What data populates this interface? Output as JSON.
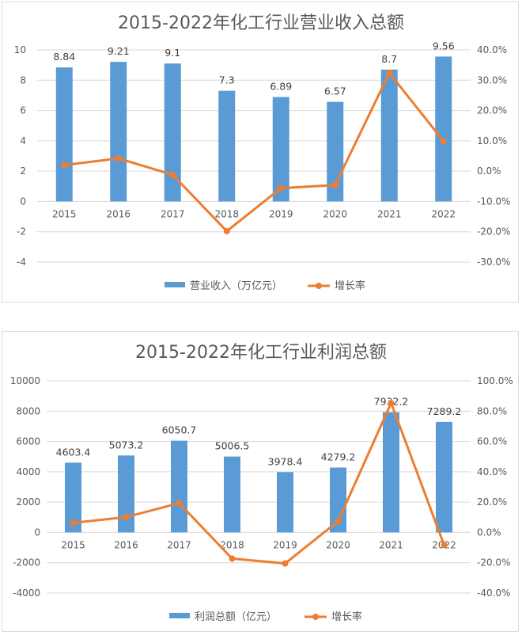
{
  "chart_data": [
    {
      "type": "bar",
      "title": "2015-2022年化工行业营业收入总额",
      "categories": [
        "2015",
        "2016",
        "2017",
        "2018",
        "2019",
        "2020",
        "2021",
        "2022"
      ],
      "series": [
        {
          "name": "营业收入（万亿元）",
          "type": "bar",
          "axis": "left",
          "color": "#5b9bd5",
          "values": [
            8.84,
            9.21,
            9.1,
            7.3,
            6.89,
            6.57,
            8.7,
            9.56
          ],
          "labels": [
            "8.84",
            "9.21",
            "9.1",
            "7.3",
            "6.89",
            "6.57",
            "8.7",
            "9.56"
          ]
        },
        {
          "name": "增长率",
          "type": "line",
          "axis": "right",
          "color": "#ed7d31",
          "values": [
            2.0,
            4.2,
            -1.2,
            -19.8,
            -5.6,
            -4.6,
            32.4,
            9.9
          ]
        }
      ],
      "left_axis": {
        "ylim": [
          -4,
          10
        ],
        "ticks": [
          "-4",
          "-2",
          "0",
          "2",
          "4",
          "6",
          "8",
          "10"
        ]
      },
      "right_axis": {
        "ylim": [
          -30,
          40
        ],
        "ticks": [
          "-30.0%",
          "-20.0%",
          "-10.0%",
          "0.0%",
          "10.0%",
          "20.0%",
          "30.0%",
          "40.0%"
        ]
      },
      "legend_position": "bottom"
    },
    {
      "type": "bar",
      "title": "2015-2022年化工行业利润总额",
      "categories": [
        "2015",
        "2016",
        "2017",
        "2018",
        "2019",
        "2020",
        "2021",
        "2022"
      ],
      "series": [
        {
          "name": "利润总额（亿元）",
          "type": "bar",
          "axis": "left",
          "color": "#5b9bd5",
          "values": [
            4603.4,
            5073.2,
            6050.7,
            5006.5,
            3978.4,
            4279.2,
            7932.2,
            7289.2
          ],
          "labels": [
            "4603.4",
            "5073.2",
            "6050.7",
            "5006.5",
            "3978.4",
            "4279.2",
            "7932.2",
            "7289.2"
          ]
        },
        {
          "name": "增长率",
          "type": "line",
          "axis": "right",
          "color": "#ed7d31",
          "values": [
            6.3,
            10.1,
            19.3,
            -17.3,
            -20.5,
            7.4,
            85.4,
            -8.3
          ]
        }
      ],
      "left_axis": {
        "ylim": [
          -4000,
          10000
        ],
        "ticks": [
          "-4000",
          "-2000",
          "0",
          "2000",
          "4000",
          "6000",
          "8000",
          "10000"
        ]
      },
      "right_axis": {
        "ylim": [
          -40,
          100
        ],
        "ticks": [
          "-40.0%",
          "-20.0%",
          "0.0%",
          "20.0%",
          "40.0%",
          "60.0%",
          "80.0%",
          "100.0%"
        ]
      },
      "legend_position": "bottom"
    }
  ]
}
